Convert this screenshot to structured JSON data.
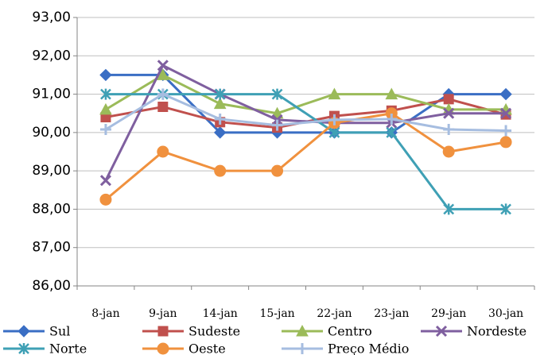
{
  "chart_data": {
    "type": "line",
    "categories": [
      "8-jan",
      "9-jan",
      "14-jan",
      "15-jan",
      "22-jan",
      "23-jan",
      "29-jan",
      "30-jan"
    ],
    "ylim": [
      86,
      93
    ],
    "yticks": [
      {
        "value": 86,
        "label": "86,00"
      },
      {
        "value": 87,
        "label": "87,00"
      },
      {
        "value": 88,
        "label": "88,00"
      },
      {
        "value": 89,
        "label": "89,00"
      },
      {
        "value": 90,
        "label": "90,00"
      },
      {
        "value": 91,
        "label": "91,00"
      },
      {
        "value": 92,
        "label": "92,00"
      },
      {
        "value": 93,
        "label": "93,00"
      }
    ],
    "grid": true,
    "legend": "bottom",
    "series": [
      {
        "name": "Sul",
        "color": "#3a6ec4",
        "marker": "diamond",
        "values": [
          91.5,
          91.5,
          90,
          90,
          90,
          90,
          91,
          91
        ]
      },
      {
        "name": "Sudeste",
        "color": "#c0504d",
        "marker": "square",
        "values": [
          90.4,
          90.67,
          90.27,
          90.13,
          90.43,
          90.57,
          90.87,
          90.47
        ]
      },
      {
        "name": "Centro",
        "color": "#9bbb59",
        "marker": "triangle",
        "values": [
          90.6,
          91.5,
          90.75,
          90.5,
          91,
          91,
          90.6,
          90.6
        ]
      },
      {
        "name": "Nordeste",
        "color": "#7f5f9f",
        "marker": "x",
        "values": [
          88.75,
          91.75,
          91,
          90.33,
          90.25,
          90.25,
          90.5,
          90.5
        ]
      },
      {
        "name": "Norte",
        "color": "#3fa0b5",
        "marker": "star",
        "values": [
          91,
          91,
          91,
          91,
          90,
          90,
          88,
          88
        ]
      },
      {
        "name": "Oeste",
        "color": "#f0913e",
        "marker": "circle",
        "values": [
          88.25,
          89.5,
          89,
          89,
          90.25,
          90.5,
          89.5,
          89.75
        ]
      },
      {
        "name": "Preço Médio",
        "color": "#a6bde0",
        "marker": "plus",
        "values": [
          90.08,
          91,
          90.35,
          90.19,
          90.33,
          90.35,
          90.08,
          90.05
        ]
      }
    ]
  }
}
